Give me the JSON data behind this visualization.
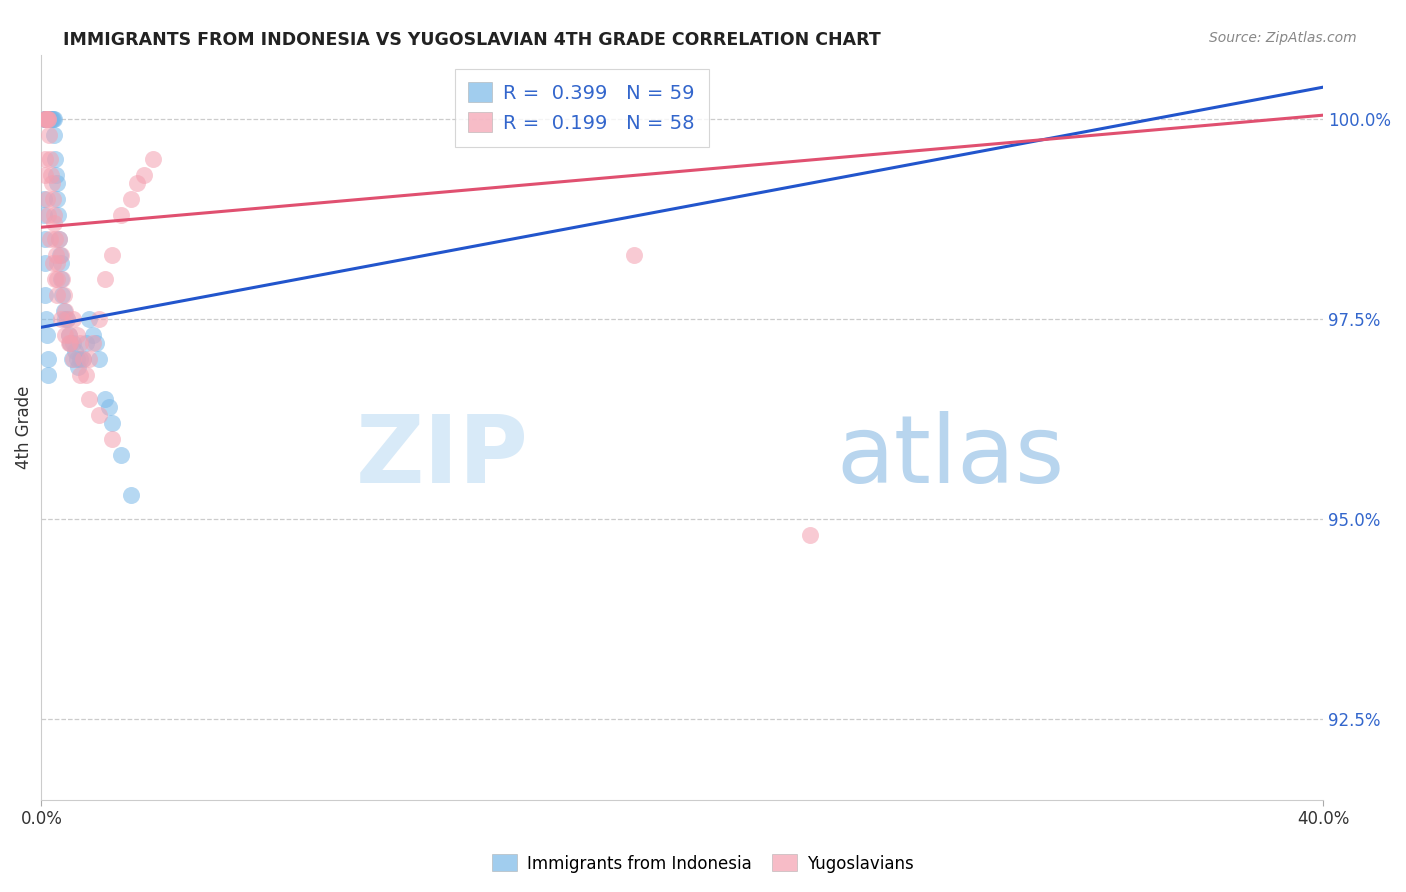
{
  "title": "IMMIGRANTS FROM INDONESIA VS YUGOSLAVIAN 4TH GRADE CORRELATION CHART",
  "source": "Source: ZipAtlas.com",
  "ylabel": "4th Grade",
  "yaxis_values": [
    100.0,
    97.5,
    95.0,
    92.5
  ],
  "legend_blue_r": "0.399",
  "legend_blue_n": "59",
  "legend_pink_r": "0.199",
  "legend_pink_n": "58",
  "legend_label_blue": "Immigrants from Indonesia",
  "legend_label_pink": "Yugoslavians",
  "blue_color": "#7ab8e8",
  "pink_color": "#f4a0b0",
  "line_blue_color": "#2255cc",
  "line_pink_color": "#e05070",
  "xlim": [
    0.0,
    40.0
  ],
  "ylim": [
    91.5,
    100.8
  ],
  "blue_line": [
    0.0,
    97.4,
    40.0,
    100.4
  ],
  "pink_line": [
    0.0,
    98.65,
    40.0,
    100.05
  ],
  "blue_x": [
    0.1,
    0.12,
    0.13,
    0.14,
    0.15,
    0.16,
    0.17,
    0.18,
    0.19,
    0.2,
    0.22,
    0.25,
    0.28,
    0.3,
    0.32,
    0.35,
    0.38,
    0.4,
    0.42,
    0.45,
    0.48,
    0.5,
    0.52,
    0.55,
    0.58,
    0.6,
    0.62,
    0.65,
    0.7,
    0.75,
    0.8,
    0.85,
    0.9,
    0.95,
    1.0,
    1.05,
    1.1,
    1.15,
    1.2,
    1.3,
    1.4,
    1.5,
    1.6,
    1.7,
    1.8,
    2.0,
    2.1,
    2.2,
    2.5,
    2.8,
    0.08,
    0.09,
    0.1,
    0.11,
    0.13,
    0.15,
    0.18,
    0.2,
    0.22
  ],
  "blue_y": [
    100.0,
    100.0,
    100.0,
    100.0,
    100.0,
    100.0,
    100.0,
    100.0,
    100.0,
    100.0,
    100.0,
    100.0,
    100.0,
    100.0,
    100.0,
    100.0,
    100.0,
    99.8,
    99.5,
    99.3,
    99.2,
    99.0,
    98.8,
    98.5,
    98.3,
    98.2,
    98.0,
    97.8,
    97.6,
    97.5,
    97.5,
    97.3,
    97.2,
    97.0,
    97.2,
    97.1,
    97.0,
    96.9,
    97.0,
    97.0,
    97.2,
    97.5,
    97.3,
    97.2,
    97.0,
    96.5,
    96.4,
    96.2,
    95.8,
    95.3,
    99.0,
    98.8,
    98.5,
    98.2,
    97.8,
    97.5,
    97.3,
    97.0,
    96.8
  ],
  "pink_x": [
    0.1,
    0.12,
    0.15,
    0.18,
    0.2,
    0.22,
    0.25,
    0.28,
    0.3,
    0.33,
    0.35,
    0.38,
    0.4,
    0.42,
    0.45,
    0.48,
    0.5,
    0.55,
    0.6,
    0.65,
    0.7,
    0.75,
    0.8,
    0.85,
    0.9,
    1.0,
    1.1,
    1.2,
    1.3,
    1.4,
    1.5,
    1.6,
    1.8,
    2.0,
    2.2,
    2.5,
    2.8,
    3.0,
    3.2,
    3.5,
    0.1,
    0.13,
    0.17,
    0.22,
    0.28,
    0.35,
    0.42,
    0.5,
    0.6,
    0.75,
    0.85,
    1.0,
    1.2,
    1.5,
    1.8,
    2.2,
    18.5,
    24.0
  ],
  "pink_y": [
    100.0,
    100.0,
    100.0,
    100.0,
    100.0,
    100.0,
    99.8,
    99.5,
    99.3,
    99.2,
    99.0,
    98.8,
    98.7,
    98.5,
    98.3,
    98.2,
    98.0,
    98.5,
    98.3,
    98.0,
    97.8,
    97.6,
    97.5,
    97.3,
    97.2,
    97.5,
    97.3,
    97.2,
    97.0,
    96.8,
    97.0,
    97.2,
    97.5,
    98.0,
    98.3,
    98.8,
    99.0,
    99.2,
    99.3,
    99.5,
    99.5,
    99.3,
    99.0,
    98.8,
    98.5,
    98.2,
    98.0,
    97.8,
    97.5,
    97.3,
    97.2,
    97.0,
    96.8,
    96.5,
    96.3,
    96.0,
    98.3,
    94.8
  ]
}
